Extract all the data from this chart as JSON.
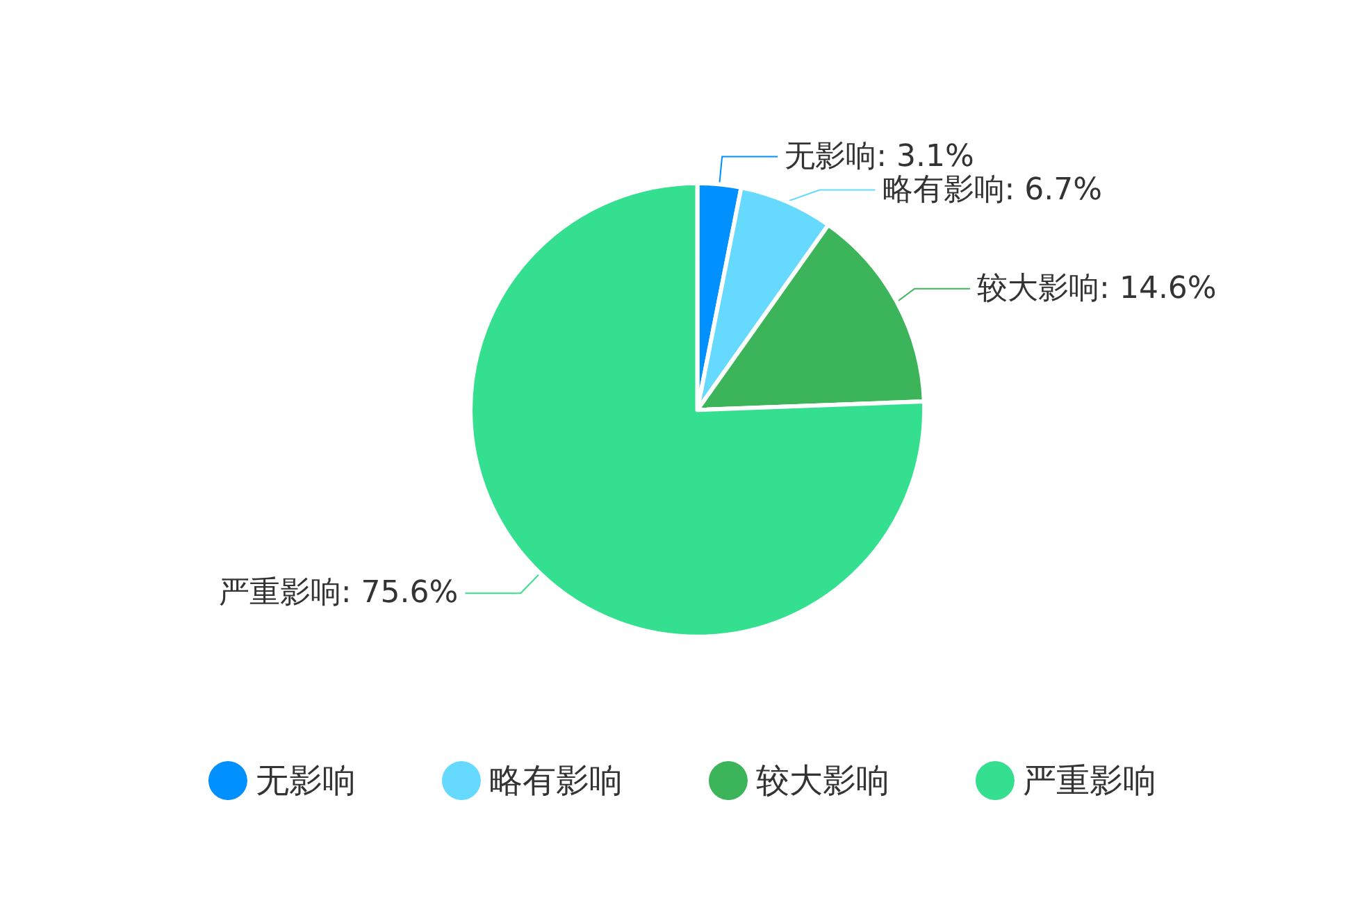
{
  "chart_data": {
    "type": "pie",
    "categories": [
      "无影响",
      "略有影响",
      "较大影响",
      "严重影响"
    ],
    "values": [
      3.1,
      6.7,
      14.6,
      75.6
    ],
    "colors": [
      "#0090ff",
      "#66d9ff",
      "#3cb55a",
      "#34e08f"
    ],
    "value_labels": [
      "无影响: 3.1%",
      "略有影响: 6.7%",
      "较大影响: 14.6%",
      "严重影响: 75.6%"
    ],
    "legend": "bottom"
  }
}
